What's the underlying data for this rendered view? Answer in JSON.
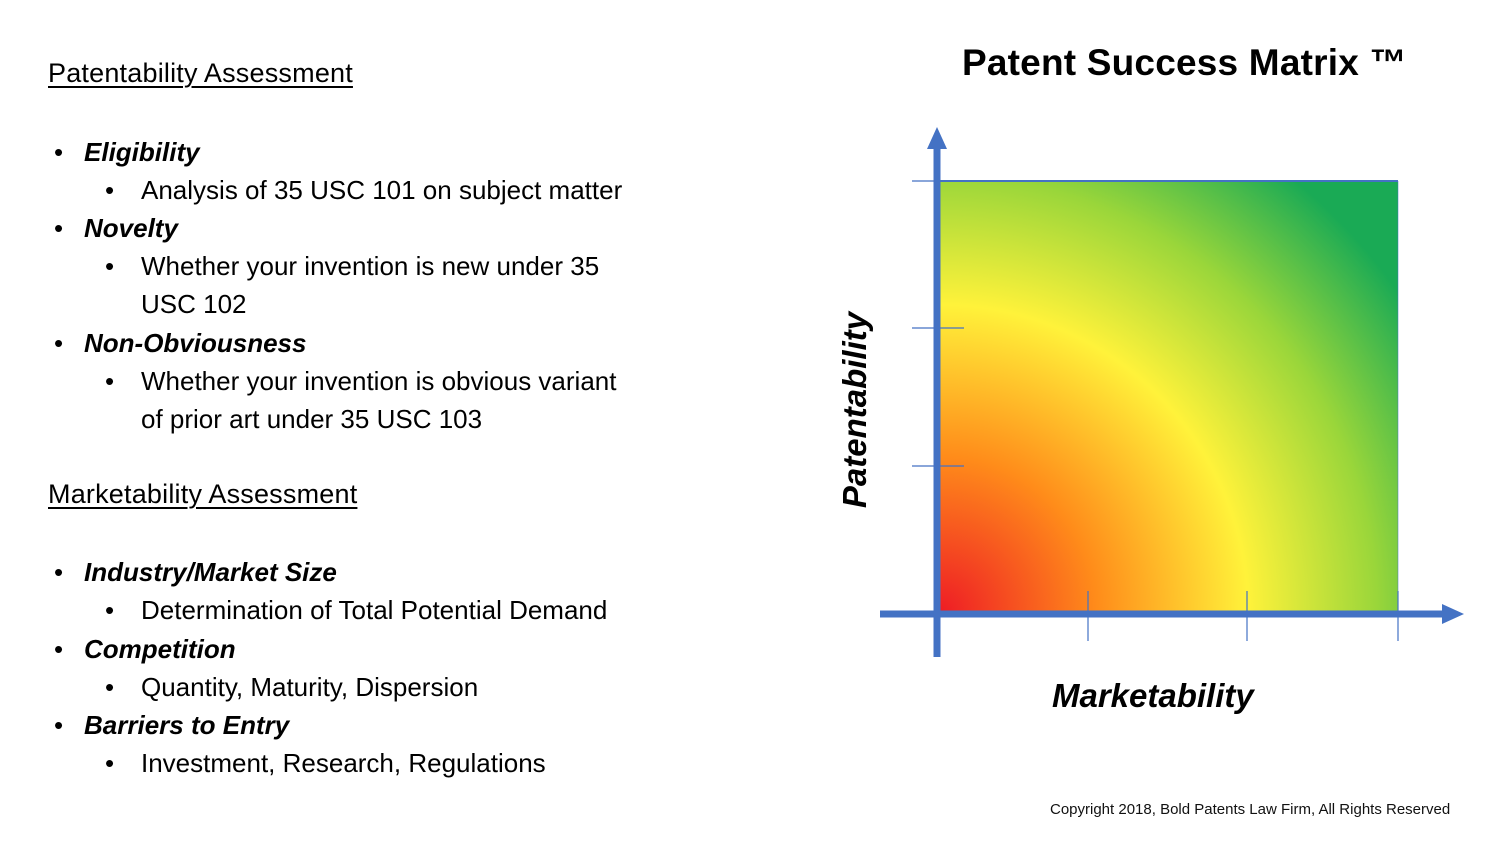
{
  "left_panel": {
    "patentability": {
      "heading": "Patentability Assessment",
      "items": [
        {
          "label": "Eligibility",
          "details": [
            "Analysis of 35 USC 101 on subject matter"
          ]
        },
        {
          "label": "Novelty",
          "details": [
            "Whether your invention is new under 35",
            "USC 102"
          ]
        },
        {
          "label": "Non-Obviousness",
          "details": [
            "Whether your invention is obvious variant",
            "of prior art under 35 USC 103"
          ]
        }
      ]
    },
    "marketability": {
      "heading": "Marketability Assessment",
      "items": [
        {
          "label": "Industry/Market Size",
          "details": [
            "Determination of Total Potential Demand"
          ]
        },
        {
          "label": "Competition",
          "details": [
            "Quantity, Maturity, Dispersion"
          ]
        },
        {
          "label": "Barriers to Entry",
          "details": [
            "Investment, Research, Regulations"
          ]
        }
      ]
    }
  },
  "matrix": {
    "title": "Patent Success Matrix ™",
    "x_axis_label": "Marketability",
    "y_axis_label": "Patentability",
    "gradient_colors": [
      "#ee1c25",
      "#ff8c1a",
      "#fff23a",
      "#9ad63a",
      "#1aaa55"
    ],
    "axis_color": "#4472c4"
  },
  "footer": {
    "copyright": "Copyright 2018, Bold Patents Law Firm, All Rights Reserved"
  }
}
